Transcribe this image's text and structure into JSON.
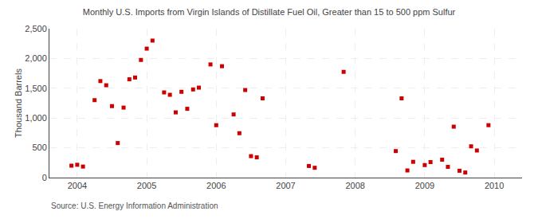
{
  "chart_data": {
    "type": "scatter",
    "title": "Monthly U.S. Imports from Virgin Islands of Distillate Fuel Oil, Greater than 15 to 500 ppm Sulfur",
    "ylabel": "Thousand Barrels",
    "annotations": [
      "Source: U.S. Energy Information Administration"
    ],
    "color": "#cc0000",
    "marker": "square",
    "grid": true,
    "xlim": [
      2003.6,
      2010.4
    ],
    "ylim": [
      0,
      2500
    ],
    "xticks": [
      2004,
      2005,
      2006,
      2007,
      2008,
      2009,
      2010
    ],
    "yticks": [
      0,
      500,
      {
        "value": 1000,
        "label": "1,000"
      },
      {
        "value": 1500,
        "label": "1,500"
      },
      {
        "value": 2000,
        "label": "2,000"
      },
      {
        "value": 2500,
        "label": "2,500"
      }
    ],
    "x": [
      2003.917,
      2004.0,
      2004.083,
      2004.25,
      2004.333,
      2004.417,
      2004.5,
      2004.583,
      2004.667,
      2004.75,
      2004.833,
      2004.917,
      2005.0,
      2005.083,
      2005.25,
      2005.333,
      2005.417,
      2005.5,
      2005.583,
      2005.667,
      2005.75,
      2005.917,
      2006.0,
      2006.083,
      2006.25,
      2006.333,
      2006.417,
      2006.5,
      2006.583,
      2006.667,
      2007.333,
      2007.417,
      2007.833,
      2008.583,
      2008.667,
      2008.75,
      2008.833,
      2009.0,
      2009.083,
      2009.25,
      2009.333,
      2009.417,
      2009.5,
      2009.583,
      2009.667,
      2009.75,
      2009.917
    ],
    "values": [
      200,
      215,
      185,
      1300,
      1620,
      1550,
      1200,
      580,
      1175,
      1650,
      1680,
      1975,
      2165,
      2300,
      1430,
      1390,
      1095,
      1440,
      1155,
      1480,
      1510,
      1900,
      880,
      1870,
      1060,
      745,
      1470,
      360,
      340,
      1330,
      195,
      165,
      1775,
      445,
      1330,
      120,
      265,
      210,
      260,
      300,
      180,
      855,
      115,
      85,
      525,
      455,
      880
    ]
  }
}
